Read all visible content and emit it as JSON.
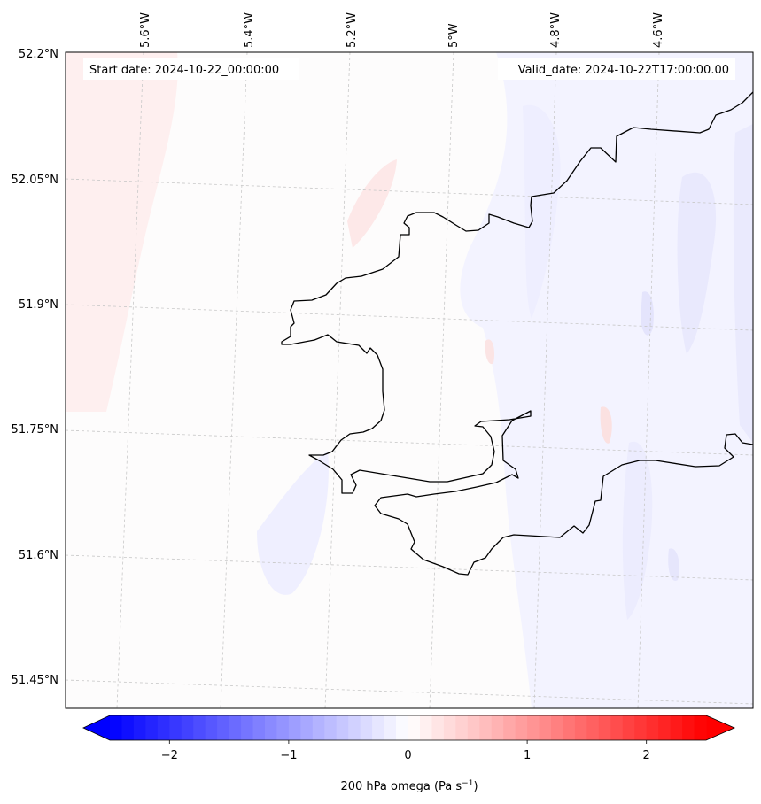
{
  "map": {
    "start_date_label": "Start date: 2024-10-22_00:00:00",
    "valid_date_label": "Valid_date: 2024-10-22T17:00:00.00",
    "lon_labels": [
      "5.6°W",
      "5.4°W",
      "5.2°W",
      "5°W",
      "4.8°W",
      "4.6°W"
    ],
    "lat_labels": [
      "52.2°N",
      "52.05°N",
      "51.9°N",
      "51.75°N",
      "51.6°N",
      "51.45°N"
    ]
  },
  "colorbar": {
    "label_main": "200 hPa omega (Pa s",
    "label_exp": "−1",
    "label_end": ")",
    "range": [
      -2.5,
      2.5
    ],
    "extend": "both",
    "ticks": [
      {
        "value": -2,
        "label": "−2"
      },
      {
        "value": -1,
        "label": "−1"
      },
      {
        "value": 0,
        "label": "0"
      },
      {
        "value": 1,
        "label": "1"
      },
      {
        "value": 2,
        "label": "2"
      }
    ],
    "colors": {
      "low": "#0000ff",
      "mid": "#ffffff",
      "high": "#ff0000"
    }
  },
  "colors": {
    "coastline": "#000000",
    "gridline": "#bbbbbb",
    "field_positive": "#fdeeee",
    "field_negative": "#eeeeff"
  }
}
